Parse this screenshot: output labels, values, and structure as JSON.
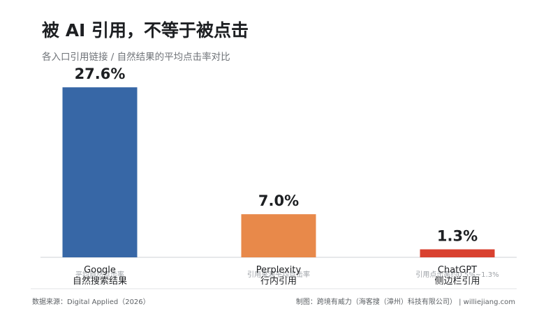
{
  "header": {
    "title": "被 AI 引用，不等于被点击",
    "subtitle": "各入口引用链接 / 自然结果的平均点击率对比"
  },
  "footer": {
    "source": "数据来源：Digital Applied（2026）",
    "credit": "制图：跨境有威力（海客搜（漳州）科技有限公司） | williejiang.com"
  },
  "chart_data": {
    "type": "bar",
    "categories": [
      {
        "line1": "Google",
        "line2": "自然搜索结果",
        "note": "平均自然点击率"
      },
      {
        "line1": "Perplexity",
        "line2": "行内引用",
        "note": "引用来源平均点击率"
      },
      {
        "line1": "ChatGPT",
        "line2": "侧边栏引用",
        "note": "引用点击率约0.5%~1.3%"
      }
    ],
    "values": [
      27.6,
      7.0,
      1.3
    ],
    "value_labels": [
      "27.6%",
      "7.0%",
      "1.3%"
    ],
    "colors": [
      "#3767a6",
      "#e8894a",
      "#d9412f"
    ],
    "ylim": [
      0,
      30
    ],
    "grid": false
  }
}
